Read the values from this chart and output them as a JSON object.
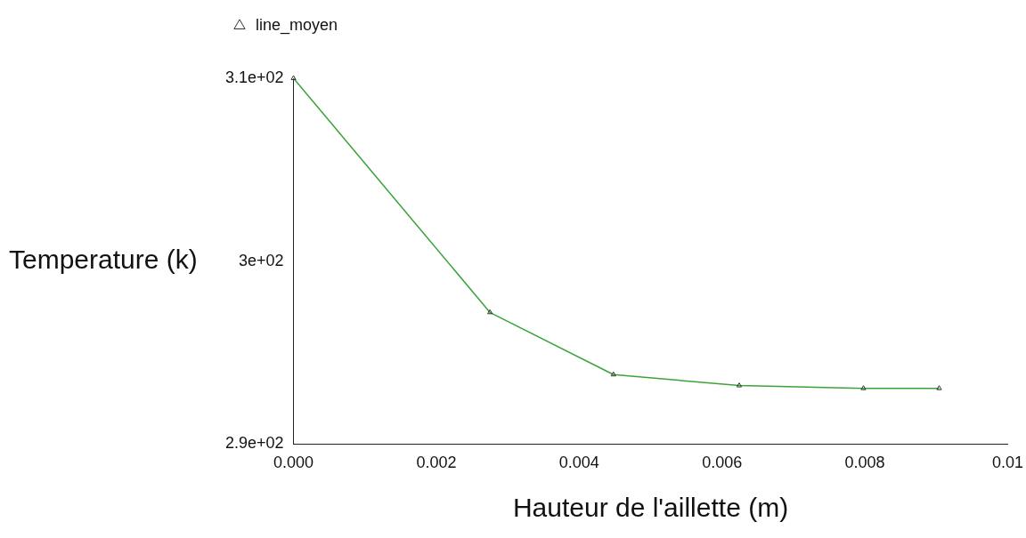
{
  "chart_data": {
    "type": "line",
    "xlabel": "Hauteur de l'aillette (m)",
    "ylabel": "Temperature (k)",
    "x": [
      0,
      0.00275,
      0.00448,
      0.00624,
      0.00798,
      0.00904
    ],
    "series": [
      {
        "name": "line_moyen",
        "color": "#3aa43a",
        "values": [
          310,
          297.2,
          293.8,
          293.2,
          293.05,
          293.05
        ]
      }
    ],
    "xlim": [
      0,
      0.01
    ],
    "xticks": [
      {
        "value": 0,
        "label": "0.000"
      },
      {
        "value": 0.002,
        "label": "0.002"
      },
      {
        "value": 0.004,
        "label": "0.004"
      },
      {
        "value": 0.006,
        "label": "0.006"
      },
      {
        "value": 0.008,
        "label": "0.008"
      },
      0.01
    ],
    "ylim": [
      290,
      310
    ],
    "yticks": [
      {
        "value": 290,
        "label": "2.9e+02"
      },
      {
        "value": 300,
        "label": "3e+02"
      },
      {
        "value": 310,
        "label": "3.1e+02"
      }
    ],
    "grid": false,
    "legend": "top left",
    "marker": "triangle",
    "line_style": "solid"
  }
}
